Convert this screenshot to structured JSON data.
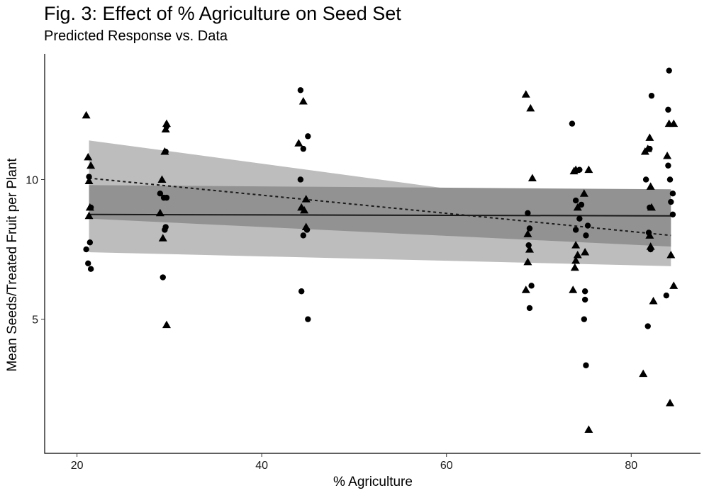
{
  "chart_data": {
    "type": "scatter",
    "title": "Fig. 3: Effect of % Agriculture on Seed Set",
    "subtitle": "Predicted Response vs. Data",
    "xlabel": "% Agriculture",
    "ylabel": "Mean Seeds/Treated Fruit per Plant",
    "xlim": [
      16.5,
      87.5
    ],
    "ylim": [
      0.2,
      14.5
    ],
    "xticks": [
      20,
      40,
      60,
      80
    ],
    "yticks": [
      5,
      10
    ],
    "grid": false,
    "colors": {
      "points": "#000000",
      "outer_band": "#bdbdbd",
      "inner_band": "#929292",
      "lines": "#1a1a1a"
    },
    "bands": [
      {
        "name": "outer-ci",
        "x": [
          21.3,
          84.3
        ],
        "upper": [
          11.4,
          8.6
        ],
        "lower": [
          7.4,
          6.9
        ]
      },
      {
        "name": "inner-ci",
        "x": [
          21.3,
          84.3
        ],
        "upper": [
          9.8,
          9.65
        ],
        "lower": [
          8.6,
          7.6
        ]
      }
    ],
    "lines": [
      {
        "name": "constant-fit",
        "style": "solid",
        "x": [
          21.3,
          84.3
        ],
        "y": [
          8.75,
          8.7
        ]
      },
      {
        "name": "slope-fit",
        "style": "dashed",
        "x": [
          21.3,
          84.3
        ],
        "y": [
          10.05,
          8.0
        ]
      }
    ],
    "series": [
      {
        "name": "circles",
        "shape": "circle",
        "points": [
          [
            21.0,
            7.5
          ],
          [
            21.2,
            7.0
          ],
          [
            21.5,
            6.8
          ],
          [
            21.4,
            7.75
          ],
          [
            21.3,
            10.1
          ],
          [
            21.5,
            9.0
          ],
          [
            29.0,
            9.5
          ],
          [
            29.4,
            9.35
          ],
          [
            29.7,
            9.35
          ],
          [
            29.3,
            6.5
          ],
          [
            29.6,
            8.3
          ],
          [
            29.5,
            8.2
          ],
          [
            29.7,
            11.9
          ],
          [
            29.6,
            11.0
          ],
          [
            44.2,
            13.2
          ],
          [
            44.5,
            11.1
          ],
          [
            45.0,
            11.55
          ],
          [
            44.2,
            10.0
          ],
          [
            44.5,
            8.0
          ],
          [
            44.3,
            6.0
          ],
          [
            45.0,
            5.0
          ],
          [
            44.9,
            8.2
          ],
          [
            68.8,
            8.8
          ],
          [
            69.0,
            8.25
          ],
          [
            69.2,
            6.2
          ],
          [
            69.0,
            5.4
          ],
          [
            68.9,
            7.65
          ],
          [
            73.6,
            12.0
          ],
          [
            74.0,
            9.25
          ],
          [
            74.6,
            9.1
          ],
          [
            74.4,
            10.35
          ],
          [
            74.4,
            8.6
          ],
          [
            74.0,
            8.2
          ],
          [
            75.0,
            6.0
          ],
          [
            75.0,
            5.7
          ],
          [
            74.9,
            5.0
          ],
          [
            75.1,
            3.35
          ],
          [
            75.3,
            8.35
          ],
          [
            75.1,
            8.0
          ],
          [
            81.6,
            10.0
          ],
          [
            82.2,
            13.0
          ],
          [
            81.9,
            8.1
          ],
          [
            82.0,
            9.0
          ],
          [
            82.1,
            7.5
          ],
          [
            81.8,
            4.75
          ],
          [
            82.0,
            11.1
          ],
          [
            84.0,
            12.5
          ],
          [
            84.0,
            10.5
          ],
          [
            84.2,
            10.0
          ],
          [
            84.3,
            9.2
          ],
          [
            84.5,
            9.5
          ],
          [
            84.5,
            8.75
          ],
          [
            84.1,
            13.9
          ],
          [
            83.8,
            5.85
          ]
        ]
      },
      {
        "name": "triangles",
        "shape": "triangle",
        "points": [
          [
            21.0,
            12.3
          ],
          [
            21.2,
            10.8
          ],
          [
            21.5,
            10.5
          ],
          [
            21.3,
            9.95
          ],
          [
            21.4,
            9.0
          ],
          [
            21.3,
            8.7
          ],
          [
            29.2,
            10.0
          ],
          [
            29.7,
            12.0
          ],
          [
            29.6,
            11.8
          ],
          [
            29.5,
            11.0
          ],
          [
            29.3,
            7.9
          ],
          [
            29.7,
            4.8
          ],
          [
            29.0,
            8.8
          ],
          [
            44.0,
            11.3
          ],
          [
            44.5,
            12.8
          ],
          [
            44.3,
            9.0
          ],
          [
            44.8,
            9.3
          ],
          [
            44.6,
            8.9
          ],
          [
            44.8,
            8.3
          ],
          [
            68.6,
            13.05
          ],
          [
            69.1,
            12.55
          ],
          [
            69.3,
            10.05
          ],
          [
            68.8,
            7.05
          ],
          [
            68.6,
            6.05
          ],
          [
            69.0,
            7.5
          ],
          [
            68.8,
            8.05
          ],
          [
            73.8,
            10.3
          ],
          [
            74.0,
            10.35
          ],
          [
            74.2,
            9.0
          ],
          [
            74.9,
            9.5
          ],
          [
            74.0,
            7.65
          ],
          [
            73.9,
            6.85
          ],
          [
            74.0,
            7.1
          ],
          [
            74.2,
            7.3
          ],
          [
            75.0,
            7.4
          ],
          [
            73.7,
            6.05
          ],
          [
            75.4,
            10.35
          ],
          [
            75.4,
            1.05
          ],
          [
            81.5,
            11.0
          ],
          [
            81.8,
            11.1
          ],
          [
            82.0,
            11.5
          ],
          [
            82.1,
            9.75
          ],
          [
            82.2,
            9.0
          ],
          [
            82.0,
            8.0
          ],
          [
            82.1,
            7.6
          ],
          [
            82.4,
            5.65
          ],
          [
            81.3,
            3.05
          ],
          [
            83.9,
            10.85
          ],
          [
            84.1,
            12.0
          ],
          [
            84.6,
            12.0
          ],
          [
            84.3,
            7.3
          ],
          [
            84.6,
            6.2
          ],
          [
            84.2,
            2.0
          ]
        ]
      }
    ]
  }
}
